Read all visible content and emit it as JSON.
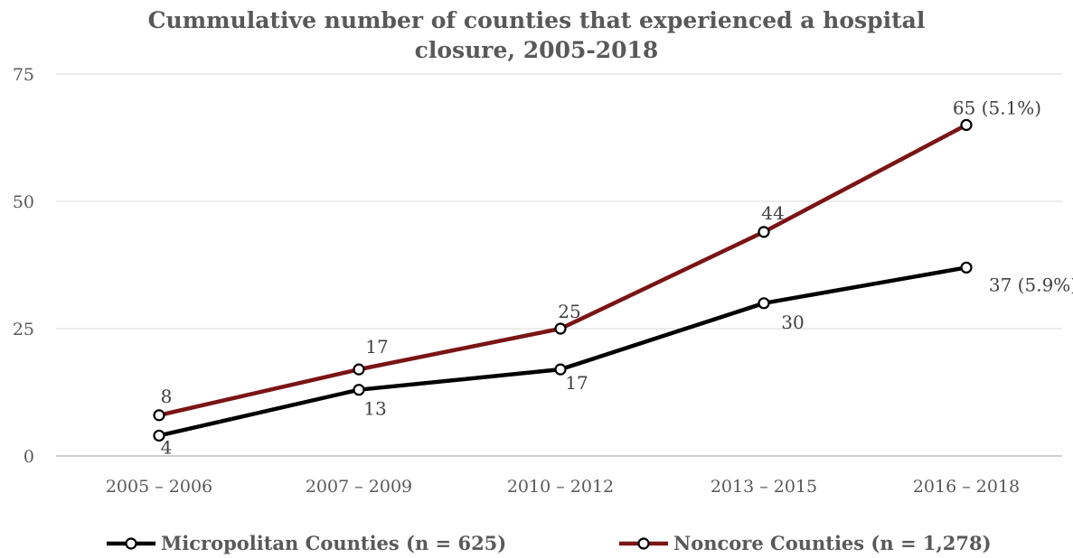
{
  "chart_data": {
    "type": "line",
    "title_line1": "Cummulative number of  counties that experienced a hospital",
    "title_line2": "closure, 2005-2018",
    "xlabel": "",
    "ylabel": "",
    "categories": [
      "2005 – 2006",
      "2007 – 2009",
      "2010 – 2012",
      "2013 – 2015",
      "2016 – 2018"
    ],
    "ylim": [
      0,
      75
    ],
    "yticks": [
      "0",
      "25",
      "50",
      "75"
    ],
    "grid": true,
    "legend_position": "bottom",
    "series": [
      {
        "name": "Micropolitan Counties (n = 625)",
        "color": "#000000",
        "values": [
          4,
          13,
          17,
          30,
          37
        ],
        "labels": [
          "4",
          "13",
          "17",
          "30",
          "37 (5.9%)"
        ]
      },
      {
        "name": "Noncore Counties (n = 1,278)",
        "color": "#7b1414",
        "values": [
          8,
          17,
          25,
          44,
          65
        ],
        "labels": [
          "8",
          "17",
          "25",
          "44",
          "65 (5.1%)"
        ]
      }
    ]
  }
}
